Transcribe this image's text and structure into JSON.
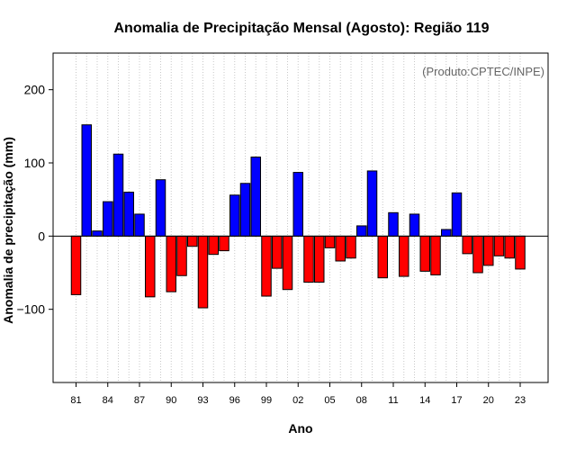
{
  "chart_data": {
    "type": "bar",
    "title": "Anomalia de Precipitação Mensal (Agosto): Região 119",
    "annotation": "(Produto:CPTEC/INPE)",
    "xlabel": "Ano",
    "ylabel": "Anomalia de precipitação (mm)",
    "ylim": [
      -200,
      250
    ],
    "yticks": [
      -100,
      0,
      100,
      200
    ],
    "grid": "vertical dotted",
    "categories": [
      "81",
      "82",
      "83",
      "84",
      "85",
      "86",
      "87",
      "88",
      "89",
      "90",
      "91",
      "92",
      "93",
      "94",
      "95",
      "96",
      "97",
      "98",
      "99",
      "00",
      "01",
      "02",
      "03",
      "04",
      "05",
      "06",
      "07",
      "08",
      "09",
      "10",
      "11",
      "12",
      "13",
      "14",
      "15",
      "16",
      "17",
      "18",
      "19",
      "20",
      "21",
      "22",
      "23"
    ],
    "xtick_labels": [
      "81",
      "84",
      "87",
      "90",
      "93",
      "96",
      "99",
      "02",
      "05",
      "08",
      "11",
      "14",
      "17",
      "20",
      "23"
    ],
    "values": [
      -80,
      152,
      7,
      47,
      112,
      60,
      30,
      -83,
      77,
      -76,
      -54,
      -14,
      -98,
      -25,
      -20,
      56,
      72,
      108,
      -82,
      -44,
      -73,
      87,
      -63,
      -63,
      -16,
      -34,
      -30,
      14,
      89,
      -57,
      32,
      -55,
      30,
      -48,
      -53,
      9,
      59,
      -24,
      -50,
      -40,
      -27,
      -30,
      -45
    ],
    "positive_color": "#0000ff",
    "negative_color": "#ff0000"
  }
}
